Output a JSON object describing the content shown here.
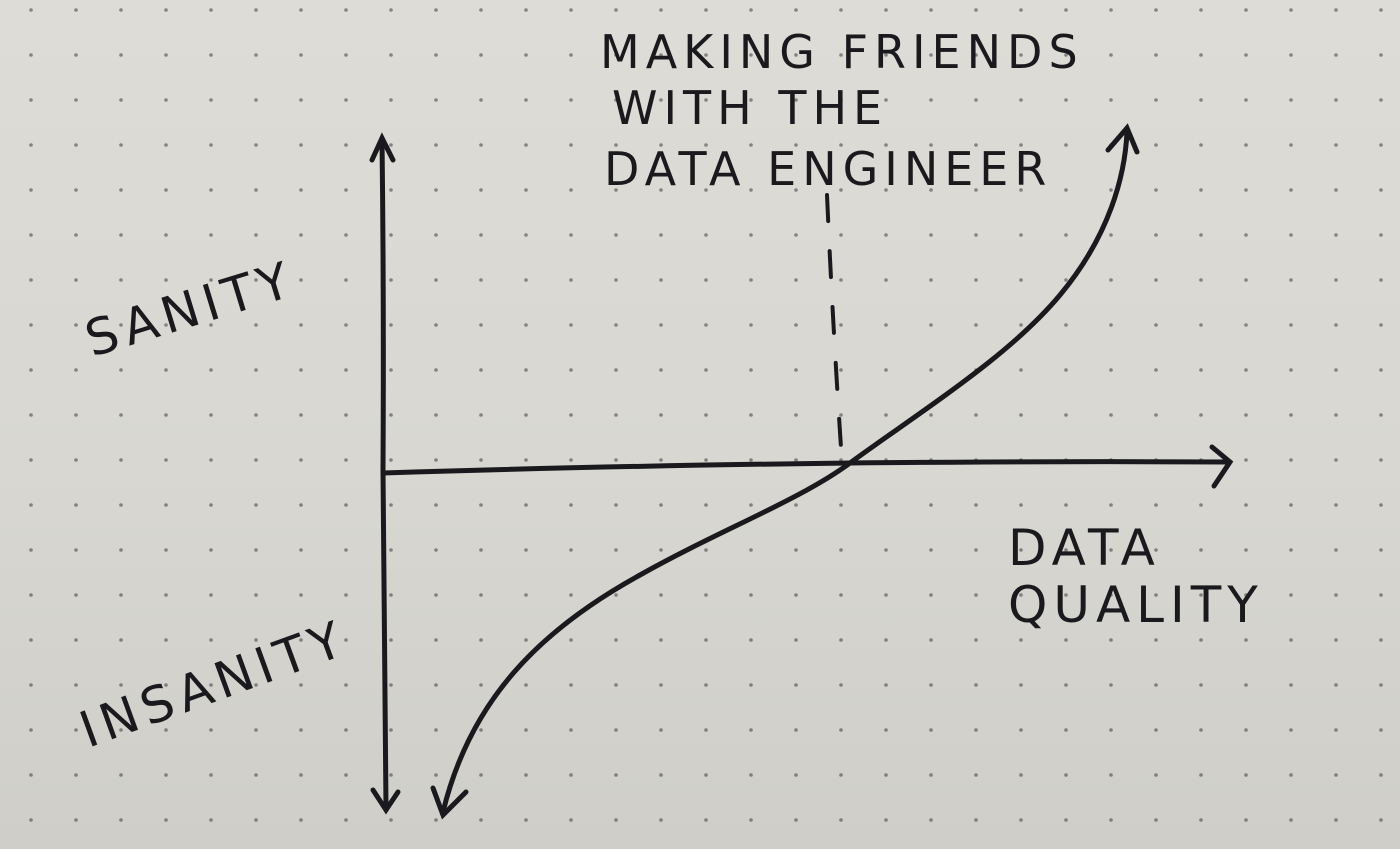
{
  "annotation": {
    "line1": "MAKING FRIENDS",
    "line2": "WITH THE",
    "line3": "DATA ENGINEER"
  },
  "y_axis": {
    "top_label": "SANITY",
    "bottom_label": "INSANITY"
  },
  "x_axis": {
    "label_line1": "DATA",
    "label_line2": "QUALITY"
  },
  "colors": {
    "ink": "#1a1a1e",
    "paper": "#d9d8d2",
    "dots": "#3a3a3e"
  }
}
